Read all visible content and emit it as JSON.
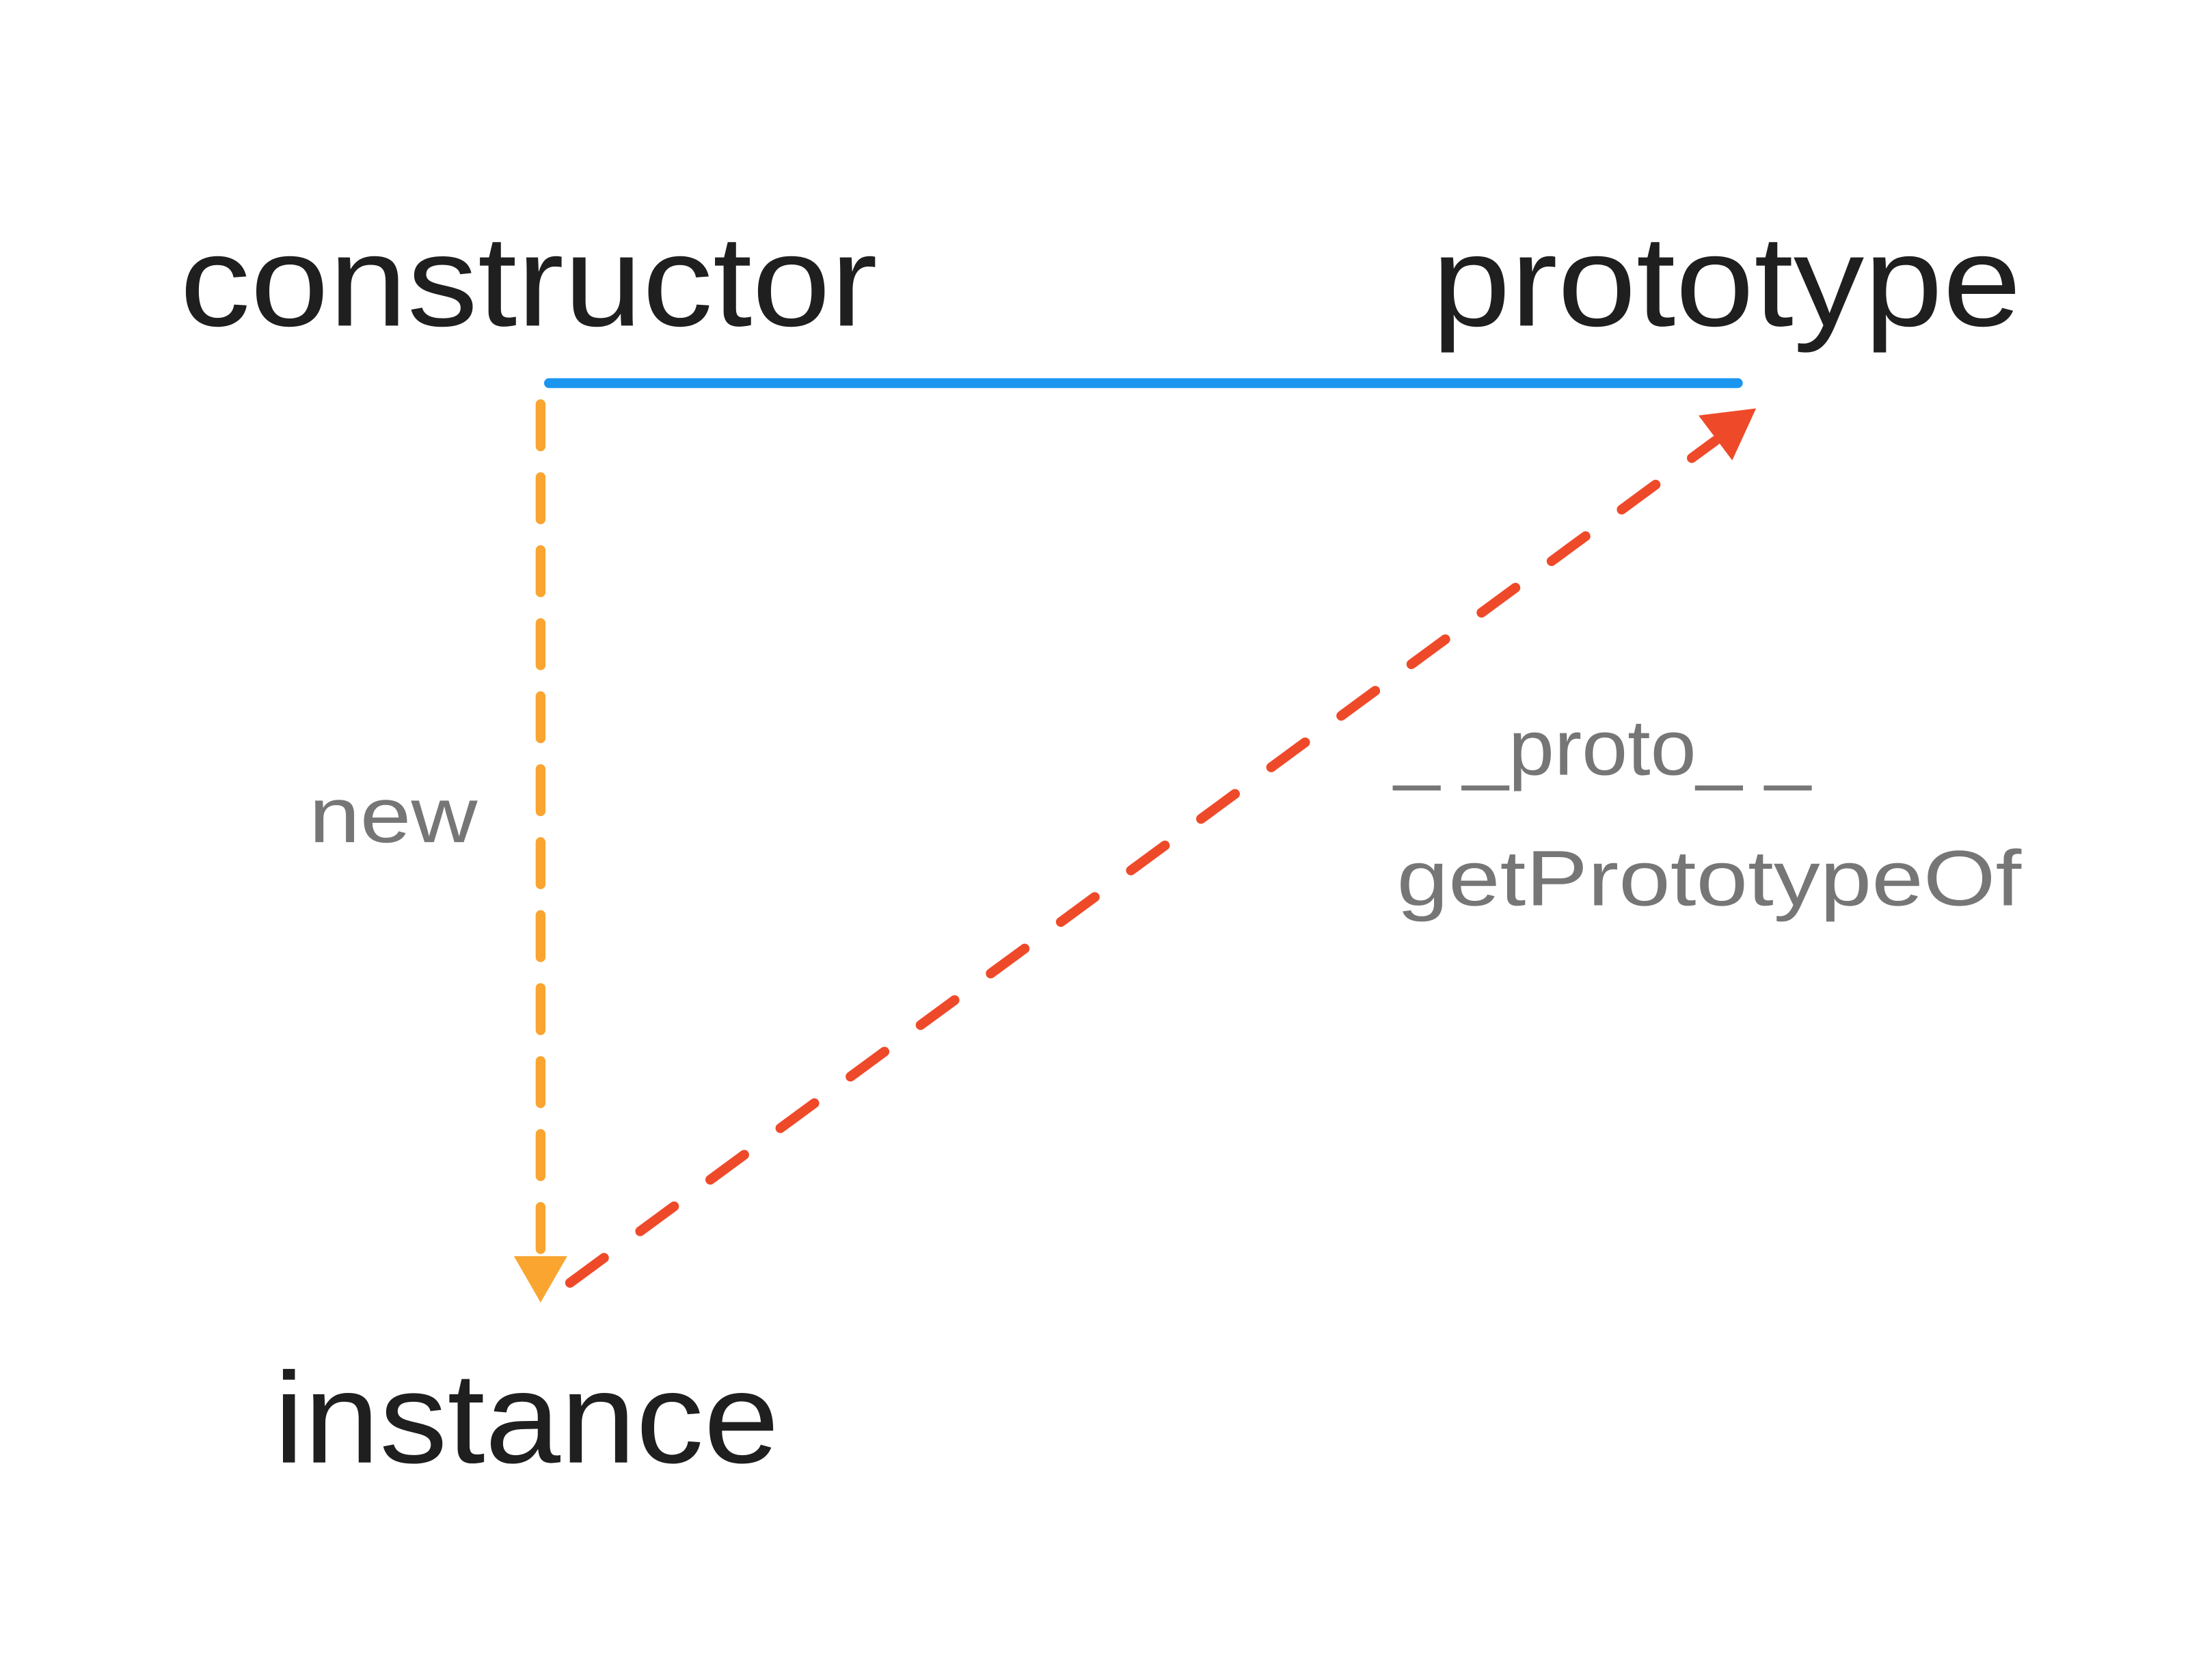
{
  "nodes": [
    {
      "label": "constructor"
    },
    {
      "label": "prototype"
    },
    {
      "label": "instance"
    }
  ],
  "edges": [
    {
      "labels": [
        "new"
      ]
    },
    {
      "labels": [
        "_ _proto_ _",
        "getPrototypeOf"
      ]
    }
  ]
}
